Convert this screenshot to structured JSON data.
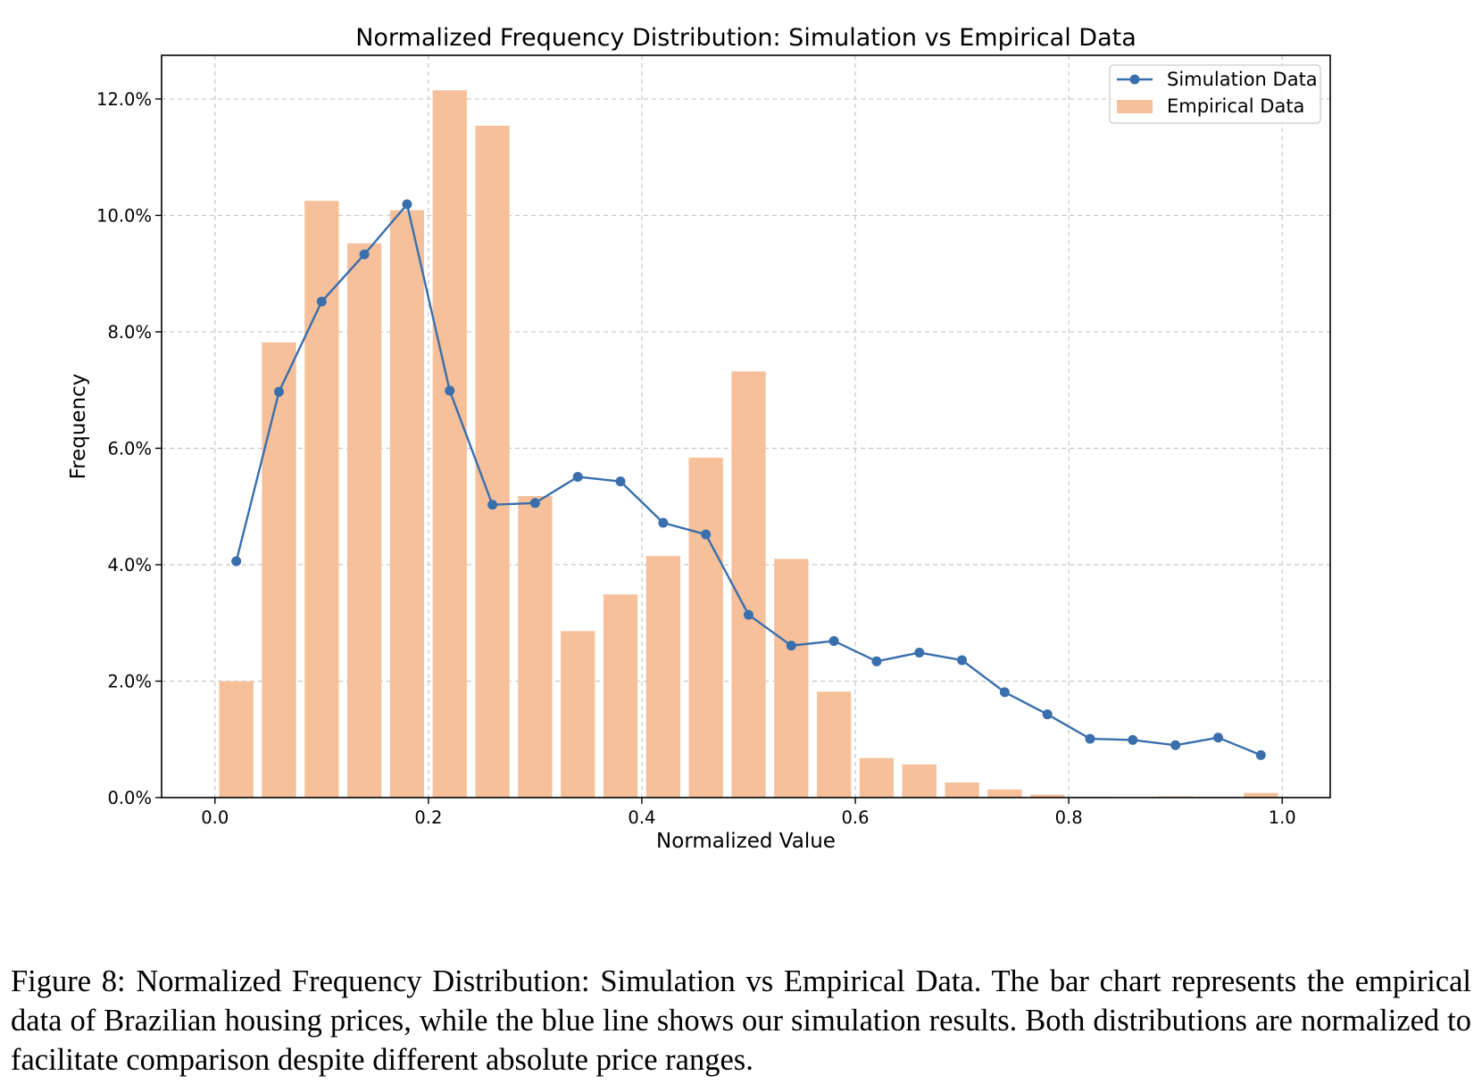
{
  "chart_data": {
    "type": "bar",
    "title": "Normalized Frequency Distribution: Simulation vs Empirical Data",
    "xlabel": "Normalized Value",
    "ylabel": "Frequency",
    "xlim": [
      -0.05,
      1.045
    ],
    "ylim": [
      0,
      0.1275
    ],
    "x_ticks": [
      0.0,
      0.2,
      0.4,
      0.6,
      0.8,
      1.0
    ],
    "x_tick_labels": [
      "0.0",
      "0.2",
      "0.4",
      "0.6",
      "0.8",
      "1.0"
    ],
    "y_ticks": [
      0,
      0.02,
      0.04,
      0.06,
      0.08,
      0.1,
      0.12
    ],
    "y_tick_labels": [
      "0.0%",
      "2.0%",
      "4.0%",
      "6.0%",
      "8.0%",
      "10.0%",
      "12.0%"
    ],
    "grid": true,
    "legend_position": "top-right",
    "x": [
      0.02,
      0.06,
      0.1,
      0.14,
      0.18,
      0.22,
      0.26,
      0.3,
      0.34,
      0.38,
      0.42,
      0.46,
      0.5,
      0.54,
      0.58,
      0.62,
      0.66,
      0.7,
      0.74,
      0.78,
      0.82,
      0.86,
      0.9,
      0.94,
      0.98
    ],
    "series": [
      {
        "name": "Simulation Data",
        "kind": "line",
        "color": "#3a6fad",
        "values": [
          0.0406,
          0.0697,
          0.0852,
          0.0933,
          0.1019,
          0.0699,
          0.0503,
          0.0506,
          0.0551,
          0.0543,
          0.0472,
          0.0452,
          0.0314,
          0.0261,
          0.0269,
          0.0234,
          0.0249,
          0.0236,
          0.0181,
          0.0143,
          0.0101,
          0.0099,
          0.009,
          0.0103,
          0.0073
        ]
      },
      {
        "name": "Empirical Data",
        "kind": "bar",
        "color": "#f5c09a",
        "values": [
          0.02,
          0.0782,
          0.1025,
          0.0952,
          0.1009,
          0.1215,
          0.1154,
          0.0518,
          0.0286,
          0.0349,
          0.0415,
          0.0584,
          0.0732,
          0.041,
          0.0182,
          0.0068,
          0.0057,
          0.0026,
          0.0014,
          0.0005,
          0.0001,
          0.0,
          0.0002,
          0.0001,
          0.0008
        ]
      }
    ]
  },
  "caption": "Figure 8: Normalized Frequency Distribution: Simulation vs Empirical Data. The bar chart represents the empirical data of Brazilian housing prices, while the blue line shows our simulation results. Both distributions are normalized to facilitate comparison despite different absolute price ranges."
}
